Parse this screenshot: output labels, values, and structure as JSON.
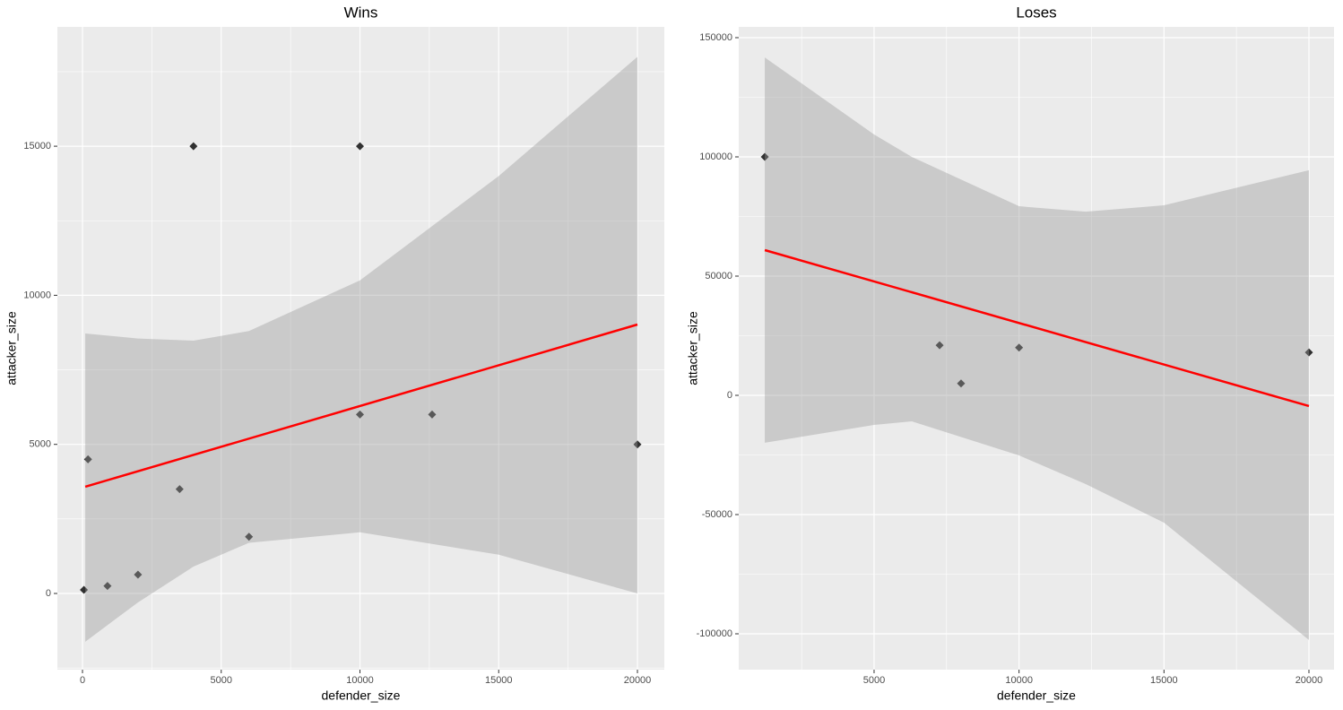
{
  "chart_data": [
    {
      "type": "scatter",
      "title": "Wins",
      "x_label": "defender_size",
      "y_label": "attacker_size",
      "series": [
        {
          "color": "#000000",
          "x": [
            50,
            200,
            900,
            2000,
            3500,
            4000,
            6000,
            10000,
            10000,
            12600,
            20000
          ],
          "values": [
            120,
            4500,
            250,
            630,
            3500,
            15000,
            1900,
            15000,
            6000,
            6000,
            5000
          ]
        }
      ],
      "fit": {
        "color": "#ff0000",
        "x": [
          100,
          20000
        ],
        "values": [
          3580,
          9020
        ]
      },
      "band": {
        "color": "#999999",
        "x": [
          100,
          2000,
          4000,
          6000,
          10000,
          15000,
          20000
        ],
        "upper": [
          8720,
          8550,
          8480,
          8800,
          10500,
          14000,
          18000
        ],
        "lower": [
          -1620,
          -300,
          900,
          1700,
          2050,
          1300,
          0
        ]
      },
      "xlim": [
        -905,
        20969
      ],
      "ylim": [
        -2556,
        19002
      ],
      "xticks": [
        0,
        5000,
        10000,
        15000,
        20000
      ],
      "yticks": [
        0,
        5000,
        10000,
        15000
      ],
      "minor_xticks": [
        2500,
        7500,
        12500,
        17500
      ],
      "minor_yticks": [
        -2500,
        2500,
        7500,
        12500,
        17500
      ],
      "grid": true
    },
    {
      "type": "scatter",
      "title": "Loses",
      "x_label": "defender_size",
      "y_label": "attacker_size",
      "series": [
        {
          "color": "#000000",
          "x": [
            1230,
            7260,
            8000,
            10000,
            20000
          ],
          "values": [
            100000,
            21000,
            5000,
            20000,
            18000
          ]
        }
      ],
      "fit": {
        "color": "#ff0000",
        "x": [
          1230,
          20000
        ],
        "values": [
          60900,
          -4500
        ]
      },
      "band": {
        "color": "#999999",
        "x": [
          1230,
          5000,
          6300,
          10000,
          12300,
          15000,
          20000
        ],
        "upper": [
          141700,
          109400,
          100000,
          79300,
          77000,
          79700,
          94400
        ],
        "lower": [
          -19900,
          -12400,
          -10900,
          -25200,
          -37200,
          -53400,
          -102600
        ]
      },
      "xlim": [
        331,
        20866
      ],
      "ylim": [
        -115038,
        154511
      ],
      "xticks": [
        5000,
        10000,
        15000,
        20000
      ],
      "yticks": [
        -100000,
        -50000,
        0,
        50000,
        100000,
        150000
      ],
      "minor_xticks": [
        2500,
        7500,
        12500,
        17500
      ],
      "minor_yticks": [
        -75000,
        -25000,
        25000,
        75000,
        125000
      ],
      "grid": true
    }
  ]
}
